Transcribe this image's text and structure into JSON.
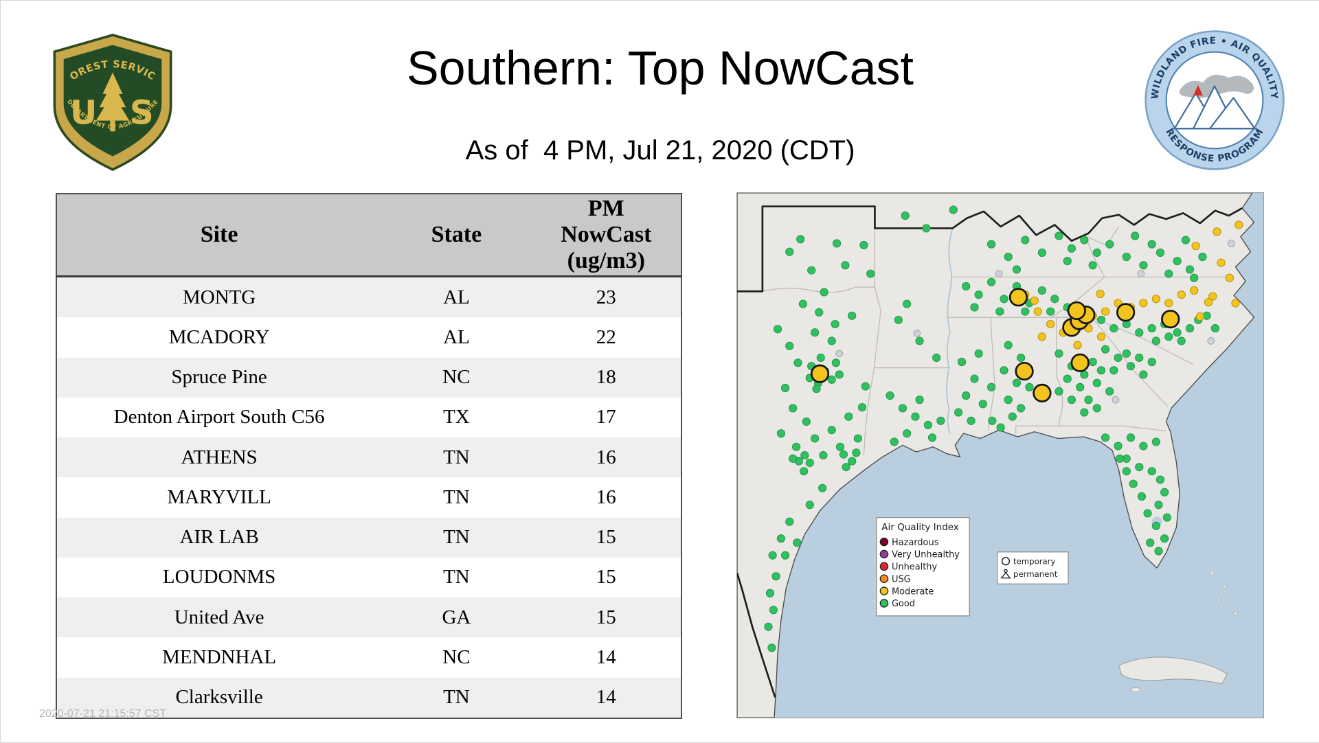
{
  "header": {
    "title": "Southern: Top NowCast",
    "subtitle": "As of  4 PM, Jul 21, 2020 (CDT)",
    "fs_logo": {
      "arc_top": "FOREST SERVICE",
      "letter_u": "U",
      "letter_s": "S",
      "arc_bottom": "DEPARTMENT OF AGRICULTURE"
    },
    "aq_logo": {
      "arc_top": "WILDLAND FIRE • AIR QUALITY",
      "arc_bottom": "RESPONSE PROGRAM"
    }
  },
  "watermark": "2020-07-21 21:15:57 CST",
  "table": {
    "pm_header_lines": [
      "PM",
      "NowCast",
      "(ug/m3)"
    ]
  },
  "chart_data": {
    "type": "table",
    "title": "Southern: Top NowCast",
    "subtitle": "As of  4 PM, Jul 21, 2020 (CDT)",
    "columns": [
      "Site",
      "State",
      "PM NowCast (ug/m3)"
    ],
    "rows": [
      [
        "MONTG",
        "AL",
        23
      ],
      [
        "MCADORY",
        "AL",
        22
      ],
      [
        "Spruce Pine",
        "NC",
        18
      ],
      [
        "Denton Airport South C56",
        "TX",
        17
      ],
      [
        "ATHENS",
        "TN",
        16
      ],
      [
        "MARYVILL",
        "TN",
        16
      ],
      [
        "AIR LAB",
        "TN",
        15
      ],
      [
        "LOUDONMS",
        "TN",
        15
      ],
      [
        "United Ave",
        "GA",
        15
      ],
      [
        "MENDNHAL",
        "NC",
        14
      ],
      [
        "Clarksville",
        "TN",
        14
      ]
    ]
  },
  "map": {
    "colors": {
      "ocean": "#b9cedf",
      "land": "#eae8e4",
      "state_line": "#bdbab4",
      "region_border": "#1f1f1f",
      "good": "#30c060",
      "moderate": "#f2c41d",
      "inactive": "#cdd2d8"
    },
    "legend": {
      "title": "Air Quality Index",
      "entries": [
        {
          "label": "Hazardous",
          "color": "#7e0023"
        },
        {
          "label": "Very Unhealthy",
          "color": "#8f3f97"
        },
        {
          "label": "Unhealthy",
          "color": "#e4252b"
        },
        {
          "label": "USG",
          "color": "#f28b1f"
        },
        {
          "label": "Moderate",
          "color": "#f2c41d"
        },
        {
          "label": "Good",
          "color": "#30c060"
        }
      ]
    },
    "marker_legend": {
      "temporary": "temporary",
      "permanent": "permanent"
    },
    "dots": {
      "good": [
        [
          62,
          70
        ],
        [
          88,
          92
        ],
        [
          103,
          118
        ],
        [
          128,
          86
        ],
        [
          150,
          62
        ],
        [
          158,
          96
        ],
        [
          118,
          60
        ],
        [
          75,
          55
        ],
        [
          78,
          132
        ],
        [
          97,
          142
        ],
        [
          116,
          156
        ],
        [
          136,
          146
        ],
        [
          92,
          166
        ],
        [
          112,
          176
        ],
        [
          48,
          162
        ],
        [
          62,
          182
        ],
        [
          72,
          202
        ],
        [
          57,
          232
        ],
        [
          66,
          256
        ],
        [
          82,
          272
        ],
        [
          52,
          286
        ],
        [
          92,
          292
        ],
        [
          112,
          282
        ],
        [
          132,
          266
        ],
        [
          143,
          292
        ],
        [
          122,
          302
        ],
        [
          102,
          312
        ],
        [
          88,
          206
        ],
        [
          104,
          212
        ],
        [
          96,
          226
        ],
        [
          112,
          222
        ],
        [
          86,
          220
        ],
        [
          99,
          196
        ],
        [
          117,
          202
        ],
        [
          121,
          216
        ],
        [
          94,
          233
        ],
        [
          70,
          302
        ],
        [
          80,
          312
        ],
        [
          73,
          319
        ],
        [
          86,
          321
        ],
        [
          79,
          331
        ],
        [
          66,
          316
        ],
        [
          126,
          311
        ],
        [
          136,
          319
        ],
        [
          129,
          326
        ],
        [
          141,
          309
        ],
        [
          101,
          351
        ],
        [
          86,
          371
        ],
        [
          62,
          391
        ],
        [
          52,
          411
        ],
        [
          42,
          431
        ],
        [
          46,
          456
        ],
        [
          39,
          476
        ],
        [
          43,
          496
        ],
        [
          37,
          516
        ],
        [
          41,
          541
        ],
        [
          57,
          431
        ],
        [
          71,
          416
        ],
        [
          148,
          255
        ],
        [
          152,
          230
        ],
        [
          181,
          241
        ],
        [
          196,
          256
        ],
        [
          211,
          266
        ],
        [
          226,
          276
        ],
        [
          241,
          271
        ],
        [
          201,
          286
        ],
        [
          186,
          296
        ],
        [
          231,
          291
        ],
        [
          216,
          246
        ],
        [
          191,
          151
        ],
        [
          216,
          176
        ],
        [
          236,
          196
        ],
        [
          201,
          132
        ],
        [
          199,
          27
        ],
        [
          224,
          42
        ],
        [
          256,
          20
        ],
        [
          266,
          201
        ],
        [
          281,
          221
        ],
        [
          271,
          241
        ],
        [
          291,
          251
        ],
        [
          301,
          231
        ],
        [
          286,
          191
        ],
        [
          262,
          261
        ],
        [
          277,
          271
        ],
        [
          321,
          181
        ],
        [
          336,
          196
        ],
        [
          316,
          211
        ],
        [
          331,
          226
        ],
        [
          346,
          231
        ],
        [
          321,
          246
        ],
        [
          336,
          256
        ],
        [
          326,
          266
        ],
        [
          302,
          271
        ],
        [
          312,
          279
        ],
        [
          271,
          111
        ],
        [
          286,
          121
        ],
        [
          301,
          106
        ],
        [
          316,
          126
        ],
        [
          331,
          111
        ],
        [
          346,
          131
        ],
        [
          361,
          116
        ],
        [
          376,
          126
        ],
        [
          391,
          136
        ],
        [
          281,
          136
        ],
        [
          311,
          141
        ],
        [
          341,
          141
        ],
        [
          371,
          141
        ],
        [
          381,
          51
        ],
        [
          396,
          66
        ],
        [
          411,
          56
        ],
        [
          426,
          71
        ],
        [
          441,
          61
        ],
        [
          391,
          81
        ],
        [
          421,
          86
        ],
        [
          301,
          61
        ],
        [
          321,
          76
        ],
        [
          341,
          56
        ],
        [
          361,
          71
        ],
        [
          331,
          91
        ],
        [
          381,
          191
        ],
        [
          396,
          206
        ],
        [
          411,
          216
        ],
        [
          421,
          201
        ],
        [
          391,
          221
        ],
        [
          406,
          231
        ],
        [
          416,
          246
        ],
        [
          396,
          246
        ],
        [
          381,
          236
        ],
        [
          426,
          226
        ],
        [
          431,
          211
        ],
        [
          441,
          236
        ],
        [
          411,
          261
        ],
        [
          426,
          256
        ],
        [
          436,
          291
        ],
        [
          451,
          301
        ],
        [
          466,
          291
        ],
        [
          481,
          301
        ],
        [
          496,
          296
        ],
        [
          461,
          316
        ],
        [
          476,
          326
        ],
        [
          491,
          331
        ],
        [
          501,
          341
        ],
        [
          506,
          356
        ],
        [
          499,
          371
        ],
        [
          509,
          386
        ],
        [
          496,
          396
        ],
        [
          486,
          381
        ],
        [
          479,
          361
        ],
        [
          469,
          346
        ],
        [
          506,
          411
        ],
        [
          499,
          426
        ],
        [
          489,
          416
        ],
        [
          461,
          331
        ],
        [
          453,
          316
        ],
        [
          436,
          186
        ],
        [
          451,
          196
        ],
        [
          466,
          206
        ],
        [
          481,
          216
        ],
        [
          461,
          191
        ],
        [
          476,
          196
        ],
        [
          446,
          211
        ],
        [
          491,
          201
        ],
        [
          431,
          151
        ],
        [
          446,
          161
        ],
        [
          461,
          156
        ],
        [
          476,
          166
        ],
        [
          491,
          161
        ],
        [
          506,
          156
        ],
        [
          521,
          166
        ],
        [
          536,
          161
        ],
        [
          546,
          151
        ],
        [
          511,
          171
        ],
        [
          496,
          176
        ],
        [
          526,
          176
        ],
        [
          556,
          146
        ],
        [
          566,
          161
        ],
        [
          461,
          76
        ],
        [
          481,
          86
        ],
        [
          501,
          71
        ],
        [
          521,
          81
        ],
        [
          536,
          91
        ],
        [
          511,
          96
        ],
        [
          491,
          61
        ],
        [
          471,
          51
        ],
        [
          531,
          56
        ],
        [
          551,
          76
        ],
        [
          541,
          101
        ]
      ],
      "moderate": [
        [
          341,
          121
        ],
        [
          356,
          141
        ],
        [
          371,
          156
        ],
        [
          386,
          166
        ],
        [
          421,
          146
        ],
        [
          436,
          141
        ],
        [
          451,
          131
        ],
        [
          466,
          136
        ],
        [
          481,
          131
        ],
        [
          496,
          126
        ],
        [
          511,
          131
        ],
        [
          526,
          121
        ],
        [
          541,
          116
        ],
        [
          431,
          171
        ],
        [
          416,
          161
        ],
        [
          361,
          171
        ],
        [
          403,
          181
        ],
        [
          543,
          63
        ],
        [
          573,
          83
        ],
        [
          563,
          123
        ],
        [
          548,
          147
        ],
        [
          583,
          101
        ],
        [
          568,
          46
        ],
        [
          590,
          131
        ],
        [
          352,
          128
        ],
        [
          430,
          120
        ],
        [
          594,
          38
        ],
        [
          558,
          130
        ]
      ],
      "inactive": [
        [
          213,
          167
        ],
        [
          310,
          96
        ],
        [
          478,
          96
        ],
        [
          561,
          176
        ],
        [
          121,
          191
        ],
        [
          448,
          246
        ],
        [
          585,
          60
        ]
      ],
      "temporary_large": [
        [
          98,
          215
        ],
        [
          333,
          124
        ],
        [
          396,
          160
        ],
        [
          405,
          152
        ],
        [
          413,
          145
        ],
        [
          402,
          140
        ],
        [
          460,
          142
        ],
        [
          513,
          150
        ],
        [
          340,
          212
        ],
        [
          406,
          202
        ],
        [
          361,
          238
        ]
      ]
    }
  }
}
